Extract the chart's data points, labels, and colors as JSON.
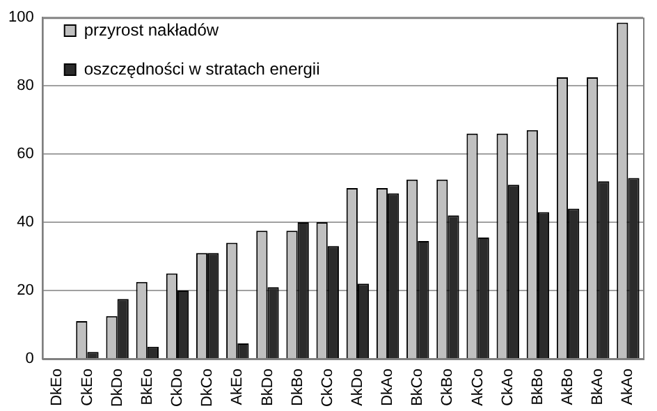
{
  "chart_data": {
    "type": "bar",
    "categories": [
      "DkEo",
      "CkEo",
      "DkDo",
      "BkEo",
      "CkDo",
      "DkCo",
      "AkEo",
      "BkDo",
      "DkBo",
      "CkCo",
      "AkDo",
      "DkAo",
      "BkCo",
      "CkBo",
      "AkCo",
      "CkAo",
      "BkBo",
      "AkBo",
      "BkAo",
      "AkAo"
    ],
    "series": [
      {
        "name": "przyrost nakładów",
        "color": "#c0c0c0",
        "values": [
          0,
          11,
          12.5,
          22.5,
          25,
          31,
          34,
          37.5,
          37.5,
          40,
          50,
          50,
          52.5,
          52.5,
          66,
          66,
          67,
          82.5,
          82.5,
          98.5
        ]
      },
      {
        "name": "oszczędności w stratach energii",
        "color": "#2b2b2b",
        "values": [
          0,
          2,
          17.5,
          3.5,
          20,
          31,
          4.5,
          21,
          40,
          33,
          22,
          48.5,
          34.5,
          42,
          35.5,
          51,
          43,
          44,
          52,
          53
        ]
      }
    ],
    "ylim": [
      0,
      100
    ],
    "yticks": [
      0,
      20,
      40,
      60,
      80,
      100
    ],
    "grid": "y",
    "legend": "top left"
  }
}
